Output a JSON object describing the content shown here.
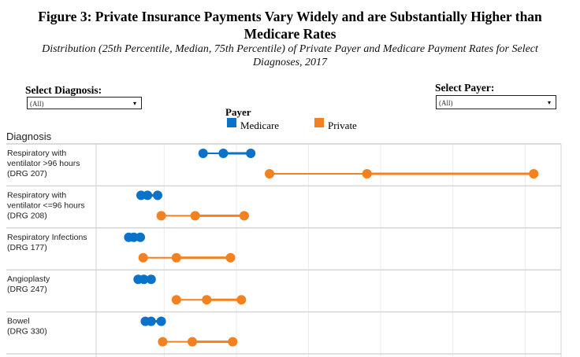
{
  "title_lines": [
    "Figure 3: Private Insurance Payments Vary Widely and are Substantially Higher than",
    "Medicare Rates"
  ],
  "subtitle_lines": [
    "Distribution (25th Percentile, Median, 75th Percentile) of Private Payer and Medicare Payment Rates for Select",
    "Diagnoses, 2017"
  ],
  "filters": {
    "diagnosis_label": "Select Diagnosis:",
    "diagnosis_value": "(All)",
    "payer_label": "Select Payer:",
    "payer_value": "(All)",
    "dropdown_icon": "▾"
  },
  "chart_data": {
    "type": "dot-range",
    "row_header": "Diagnosis",
    "legend": {
      "title": "Payer",
      "placement": "top-center",
      "entries": [
        {
          "name": "Medicare",
          "color": "#0b72c9"
        },
        {
          "name": "Private",
          "color": "#f4811f"
        }
      ]
    },
    "xlim": [
      0.08,
      6.5
    ],
    "x_gridlines": [
      1,
      2,
      3,
      4,
      5,
      6
    ],
    "x_tick_labels_shown": false,
    "note": "",
    "categories": [
      {
        "label_lines": [
          "Respiratory with",
          "ventilator >96 hours",
          "(DRG 207)"
        ],
        "medicare": [
          1.54,
          1.82,
          2.2
        ],
        "private": [
          2.46,
          3.81,
          6.12
        ]
      },
      {
        "label_lines": [
          "Respiratory with",
          "ventilator <=96 hours",
          "(DRG 208)"
        ],
        "medicare": [
          0.68,
          0.77,
          0.91
        ],
        "private": [
          0.96,
          1.43,
          2.11
        ]
      },
      {
        "label_lines": [
          "Respiratory Infections",
          "(DRG 177)"
        ],
        "medicare": [
          0.51,
          0.58,
          0.67
        ],
        "private": [
          0.71,
          1.17,
          1.92
        ]
      },
      {
        "label_lines": [
          "Angioplasty",
          "(DRG 247)"
        ],
        "medicare": [
          0.64,
          0.72,
          0.82
        ],
        "private": [
          1.17,
          1.59,
          2.07
        ]
      },
      {
        "label_lines": [
          "Bowel",
          "(DRG 330)"
        ],
        "medicare": [
          0.74,
          0.82,
          0.96
        ],
        "private": [
          0.98,
          1.39,
          1.95
        ]
      }
    ]
  }
}
